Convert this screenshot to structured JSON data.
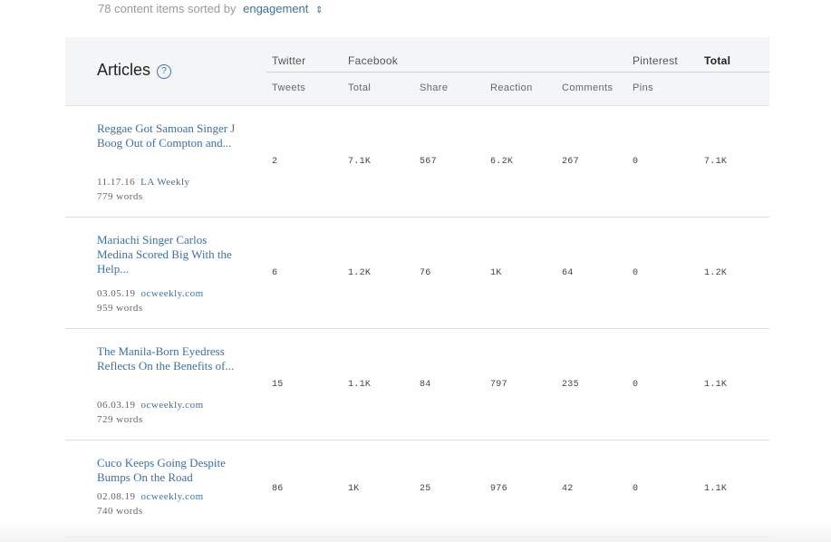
{
  "summary": {
    "prefix": "78 content items sorted by",
    "sort_label": "engagement",
    "sort_icon": "⇕"
  },
  "header": {
    "title": "Articles",
    "help_icon": "?",
    "groups": {
      "twitter": "Twitter",
      "facebook": "Facebook",
      "pinterest": "Pinterest",
      "total": "Total"
    },
    "columns": {
      "tweets": "Tweets",
      "fb_total": "Total",
      "share": "Share",
      "reaction": "Reaction",
      "comments": "Comments",
      "pins": "Pins"
    }
  },
  "rows": [
    {
      "title": "Reggae Got Samoan Singer J Boog Out of Compton and...",
      "date": "11.17.16",
      "source": "LA Weekly",
      "words": "779 words",
      "tweets": "2",
      "fb_total": "7.1K",
      "share": "567",
      "reaction": "6.2K",
      "comments": "267",
      "pins": "0",
      "total": "7.1K"
    },
    {
      "title": "Mariachi Singer Carlos Medina Scored Big With the Help...",
      "date": "03.05.19",
      "source": "ocweekly.com",
      "words": "959 words",
      "tweets": "6",
      "fb_total": "1.2K",
      "share": "76",
      "reaction": "1K",
      "comments": "64",
      "pins": "0",
      "total": "1.2K"
    },
    {
      "title": "The Manila-Born Eyedress Reflects On the Benefits of...",
      "date": "06.03.19",
      "source": "ocweekly.com",
      "words": "729 words",
      "tweets": "15",
      "fb_total": "1.1K",
      "share": "84",
      "reaction": "797",
      "comments": "235",
      "pins": "0",
      "total": "1.1K"
    },
    {
      "title": "Cuco Keeps Going Despite Bumps On the Road",
      "date": "02.08.19",
      "source": "ocweekly.com",
      "words": "740 words",
      "tweets": "86",
      "fb_total": "1K",
      "share": "25",
      "reaction": "976",
      "comments": "42",
      "pins": "0",
      "total": "1.1K"
    }
  ]
}
